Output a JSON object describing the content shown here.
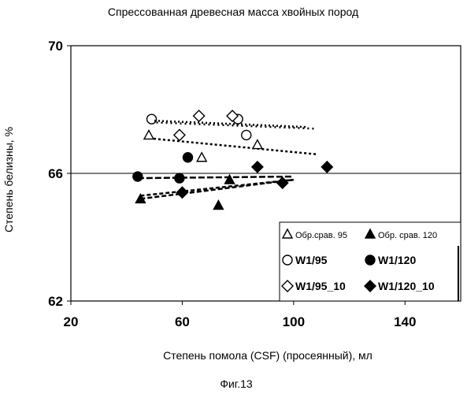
{
  "chart_data": {
    "type": "scatter",
    "title": "Спрессованная древесная масса хвойных пород",
    "xlabel": "Степень помола  (CSF) (просеянный), мл",
    "ylabel": "Степень белизны, %",
    "caption": "Фиг.13",
    "xlim": [
      20,
      160
    ],
    "ylim": [
      62,
      70
    ],
    "x_ticks": [
      "20",
      "60",
      "100",
      "140"
    ],
    "y_ticks": [
      "62",
      "66",
      "70"
    ],
    "reference_line": 66,
    "legend_position": "bottom-right",
    "series": [
      {
        "name": "Обр.срав. 95",
        "marker": "triangle-open",
        "points": [
          [
            48,
            67.2
          ],
          [
            67,
            66.5
          ],
          [
            87,
            66.9
          ]
        ],
        "trend": [
          [
            48,
            67.1
          ],
          [
            108,
            66.6
          ]
        ]
      },
      {
        "name": "Обр. срав. 120",
        "marker": "triangle-filled",
        "points": [
          [
            45,
            65.2
          ],
          [
            73,
            65.0
          ],
          [
            77,
            65.8
          ]
        ],
        "trend": [
          [
            45,
            65.2
          ],
          [
            100,
            65.8
          ]
        ]
      },
      {
        "name": "W1/95",
        "marker": "circle-open",
        "points": [
          [
            49,
            67.7
          ],
          [
            80,
            67.7
          ],
          [
            83,
            67.2
          ]
        ],
        "trend": [
          [
            49,
            67.6
          ],
          [
            108,
            67.4
          ]
        ]
      },
      {
        "name": "W1/120",
        "marker": "circle-filled",
        "points": [
          [
            44,
            65.9
          ],
          [
            59,
            65.85
          ],
          [
            62,
            66.5
          ]
        ],
        "trend": [
          [
            44,
            65.85
          ],
          [
            100,
            65.9
          ]
        ]
      },
      {
        "name": "W1/95_10",
        "marker": "diamond-open",
        "points": [
          [
            59,
            67.2
          ],
          [
            66,
            67.8
          ],
          [
            78,
            67.8
          ]
        ],
        "trend": [
          [
            50,
            67.65
          ],
          [
            105,
            67.45
          ]
        ]
      },
      {
        "name": "W1/120_10",
        "marker": "diamond-filled",
        "points": [
          [
            60,
            65.4
          ],
          [
            87,
            66.2
          ],
          [
            96,
            65.7
          ],
          [
            112,
            66.2
          ]
        ],
        "trend": [
          [
            45,
            65.3
          ],
          [
            100,
            65.8
          ]
        ]
      }
    ]
  }
}
